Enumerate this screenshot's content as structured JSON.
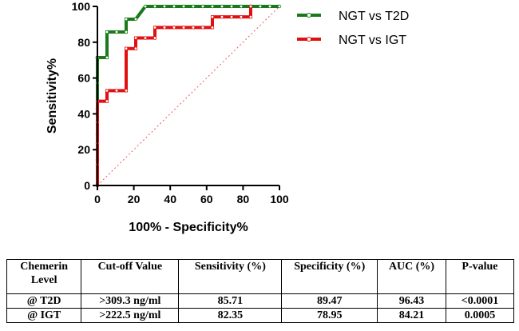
{
  "chart_data": {
    "type": "line",
    "title": "",
    "xlabel": "100% - Specificity%",
    "ylabel": "Sensitivity%",
    "xlim": [
      0,
      100
    ],
    "ylim": [
      0,
      100
    ],
    "xticks": [
      "0",
      "20",
      "40",
      "60",
      "80",
      "100"
    ],
    "yticks": [
      "0",
      "20",
      "40",
      "60",
      "80",
      "100"
    ],
    "legend_position": "top-right",
    "reference_line": {
      "name": "random-classifier",
      "x": [
        0,
        100
      ],
      "y": [
        0,
        100
      ],
      "color": "#e06060",
      "style": "dotted"
    },
    "series": [
      {
        "name": "NGT vs T2D",
        "color": "#1a7a1a",
        "x": [
          0,
          0,
          0,
          0,
          0,
          0,
          0,
          0,
          0,
          0,
          0,
          0,
          5.26,
          5.26,
          10.53,
          15.79,
          15.79,
          21.05,
          26.32,
          31.58,
          36.84,
          42.11,
          47.37,
          52.63,
          57.89,
          63.16,
          68.42,
          73.68,
          78.95,
          84.21,
          89.47,
          94.74,
          100
        ],
        "y": [
          0,
          14.29,
          28.57,
          42.86,
          57.14,
          71.43,
          71.43,
          71.43,
          71.43,
          71.43,
          71.43,
          71.43,
          71.43,
          85.71,
          85.71,
          85.71,
          92.86,
          92.86,
          100,
          100,
          100,
          100,
          100,
          100,
          100,
          100,
          100,
          100,
          100,
          100,
          100,
          100,
          100
        ]
      },
      {
        "name": "NGT vs IGT",
        "color": "#e01010",
        "x": [
          0,
          0,
          0,
          0,
          0,
          5.26,
          5.26,
          10.53,
          15.79,
          15.79,
          21.05,
          21.05,
          26.32,
          31.58,
          31.58,
          36.84,
          42.11,
          47.37,
          52.63,
          57.89,
          63.16,
          63.16,
          68.42,
          73.68,
          78.95,
          84.21,
          84.21
        ],
        "y": [
          0,
          11.76,
          23.53,
          35.29,
          47.06,
          47.06,
          52.94,
          52.94,
          52.94,
          76.47,
          76.47,
          82.35,
          82.35,
          82.35,
          88.24,
          88.24,
          88.24,
          88.24,
          88.24,
          88.24,
          88.24,
          94.12,
          94.12,
          94.12,
          94.12,
          94.12,
          100
        ]
      }
    ]
  },
  "table": {
    "headers": [
      "Chemerin Level",
      "Cut-off Value",
      "Sensitivity (%)",
      "Specificity (%)",
      "AUC (%)",
      "P-value"
    ],
    "rows": [
      [
        "@ T2D",
        ">309.3 ng/ml",
        "85.71",
        "89.47",
        "96.43",
        "<0.0001"
      ],
      [
        "@ IGT",
        ">222.5 ng/ml",
        "82.35",
        "78.95",
        "84.21",
        "0.0005"
      ]
    ]
  }
}
